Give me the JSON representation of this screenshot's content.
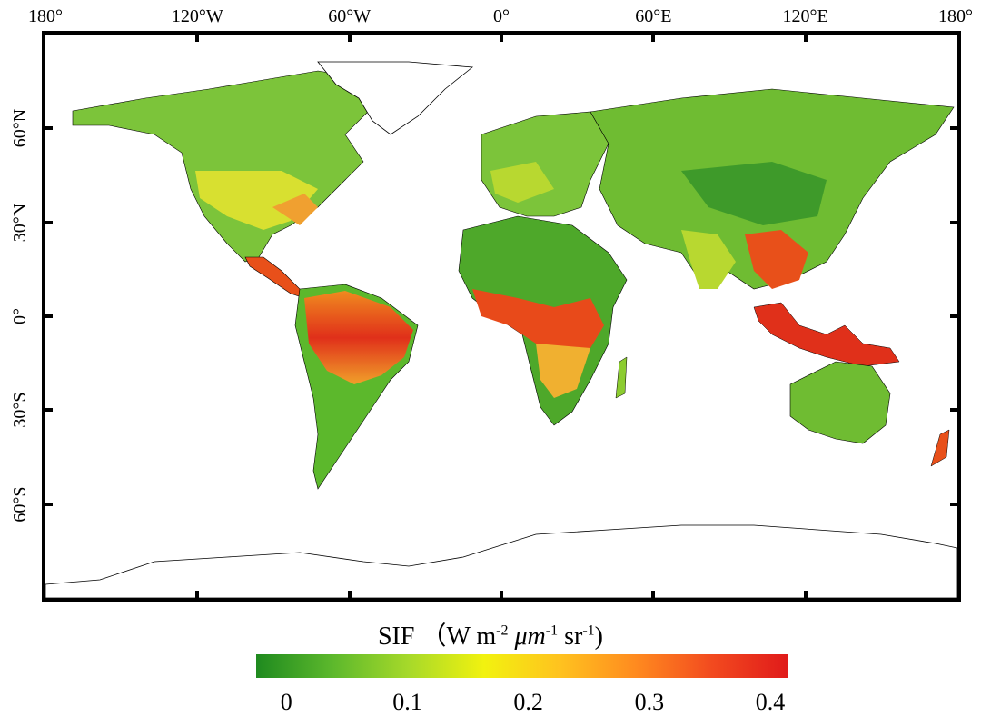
{
  "axes": {
    "lon_ticks": [
      "180°",
      "120°W",
      "60°W",
      "0°",
      "60°E",
      "120°E",
      "180°"
    ],
    "lat_ticks": [
      "60°N",
      "30°N",
      "0°",
      "30°S",
      "60°S"
    ],
    "lon_values": [
      -180,
      -120,
      -60,
      0,
      60,
      120,
      180
    ],
    "lat_values": [
      60,
      30,
      0,
      -30,
      -60
    ],
    "lat_range": [
      -90,
      90
    ],
    "lon_range": [
      -180,
      180
    ]
  },
  "colorbar": {
    "title_main": "SIF",
    "title_units": [
      "W",
      "m",
      "-2",
      "μm",
      "-1",
      "sr",
      "-1"
    ],
    "tick_labels": [
      "0",
      "0.1",
      "0.2",
      "0.3",
      "0.4"
    ],
    "tick_values": [
      0,
      0.1,
      0.2,
      0.3,
      0.4
    ],
    "range": [
      -0.025,
      0.415
    ],
    "colors": [
      "#1f8a1f",
      "#5cb82c",
      "#a6d92a",
      "#f2f20f",
      "#ffc21f",
      "#ff8a1f",
      "#f24a1f",
      "#e01a1a"
    ]
  },
  "colors": {
    "ocean": "#ffffff",
    "land_low": "#3d9a2a",
    "land_mid": "#7cc43a",
    "land_high": "#e0401a",
    "antarctica_outline": "#000000",
    "frame": "#000000"
  }
}
